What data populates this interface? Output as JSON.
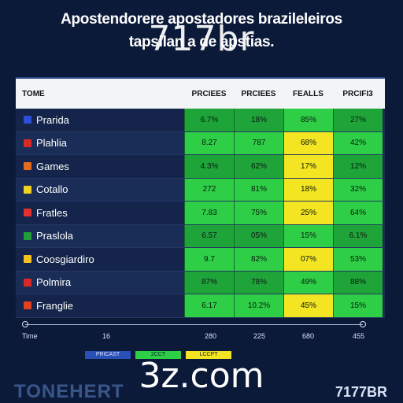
{
  "headline": {
    "line1": "Apostendorere apostadores brazileleiros",
    "line2": "tapsilan a de apstias."
  },
  "watermark_top": "717br",
  "watermark_bottom": "3z.com",
  "table": {
    "headers": [
      "TOME",
      "PRCIEES",
      "PRCIEES",
      "FEALLS",
      "PRCIFI3"
    ],
    "rows": [
      {
        "name": "Prarida",
        "flag": "#2b4fd6",
        "values": [
          "6.7%",
          "18%",
          "85%",
          "27%"
        ],
        "tones": [
          "g-dark",
          "g-dark",
          "g-light",
          "g-dark"
        ]
      },
      {
        "name": "Plahlia",
        "flag": "#d92828",
        "values": [
          "8.27",
          "787",
          "68%",
          "42%"
        ],
        "tones": [
          "g-light",
          "g-light",
          "g-yellow",
          "g-light"
        ]
      },
      {
        "name": "Games",
        "flag": "#e36b1f",
        "values": [
          "4.3%",
          "62%",
          "17%",
          "12%"
        ],
        "tones": [
          "g-dark",
          "g-dark",
          "g-yellow",
          "g-dark"
        ]
      },
      {
        "name": "Cotallo",
        "flag": "#f3d21f",
        "values": [
          "272",
          "81%",
          "18%",
          "32%"
        ],
        "tones": [
          "g-light",
          "g-light",
          "g-yellow",
          "g-light"
        ]
      },
      {
        "name": "Fratles",
        "flag": "#e33030",
        "values": [
          "7.83",
          "75%",
          "25%",
          "64%"
        ],
        "tones": [
          "g-light",
          "g-light",
          "g-yellow",
          "g-light"
        ]
      },
      {
        "name": "Praslola",
        "flag": "#1f9e3a",
        "values": [
          "6.57",
          "05%",
          "15%",
          "6.1%"
        ],
        "tones": [
          "g-dark",
          "g-dark",
          "g-light",
          "g-dark"
        ]
      },
      {
        "name": "Coosgiardiro",
        "flag": "#f3c21f",
        "values": [
          "9.7",
          "82%",
          "07%",
          "53%"
        ],
        "tones": [
          "g-light",
          "g-light",
          "g-yellow",
          "g-light"
        ]
      },
      {
        "name": "Polmira",
        "flag": "#d92828",
        "values": [
          "87%",
          "78%",
          "49%",
          "88%"
        ],
        "tones": [
          "g-dark",
          "g-dark",
          "g-light",
          "g-dark"
        ]
      },
      {
        "name": "Franglie",
        "flag": "#e34020",
        "values": [
          "6.17",
          "10.2%",
          "45%",
          "15%"
        ],
        "tones": [
          "g-light",
          "g-light",
          "g-yellow",
          "g-light"
        ]
      }
    ]
  },
  "axis": {
    "start": "Time",
    "ticks": [
      "16",
      "280",
      "225",
      "680",
      "455"
    ]
  },
  "legend": [
    "PRICAST",
    "2CCT",
    "LCCPT"
  ],
  "footer": {
    "left": "TONEHERT",
    "right": "7177BR"
  }
}
